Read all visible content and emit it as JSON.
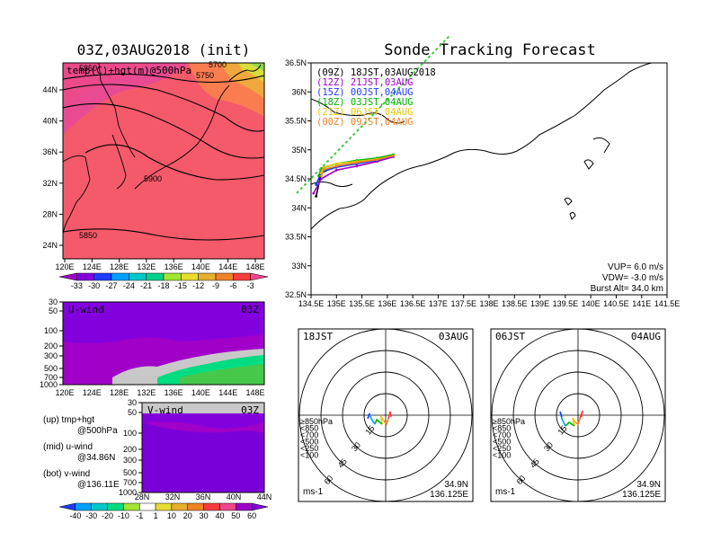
{
  "left_title": "03Z,03AUG2018 (init)",
  "right_title": "Sonde Tracking Forecast",
  "map_panel": {
    "label": "temp(C)+hgt(m)@500hPa",
    "contour_labels": [
      "5850",
      "5900",
      "5850",
      "5700",
      "5750"
    ],
    "lon_ticks": [
      "120E",
      "124E",
      "128E",
      "132E",
      "136E",
      "140E",
      "144E",
      "148E"
    ],
    "lat_ticks": [
      "44N",
      "40N",
      "36N",
      "32N",
      "28N",
      "24N"
    ]
  },
  "temp_colorbar": {
    "labels": [
      "-33",
      "-30",
      "-27",
      "-24",
      "-21",
      "-18",
      "-15",
      "-12",
      "-9",
      "-6",
      "-3"
    ],
    "colors": [
      "#a000c8",
      "#8200dc",
      "#1e3cff",
      "#00a0ff",
      "#00c8c8",
      "#00d28c",
      "#a0e632",
      "#e6dc32",
      "#e6af2d",
      "#f08228",
      "#fa3c3c",
      "#f0468c"
    ]
  },
  "uwind_panel": {
    "label": "U-wind",
    "time": "03Z",
    "y_ticks": [
      "30",
      "50",
      "100",
      "200",
      "300",
      "500",
      "700",
      "1000"
    ],
    "x_ticks": [
      "120E",
      "124E",
      "128E",
      "132E",
      "136E",
      "140E",
      "144E",
      "148E"
    ]
  },
  "vwind_panel": {
    "label": "V-wind",
    "time": "03Z",
    "y_ticks": [
      "30",
      "50",
      "100",
      "200",
      "300",
      "500",
      "700",
      "1000"
    ],
    "x_ticks": [
      "28N",
      "32N",
      "36N",
      "40N",
      "44N"
    ]
  },
  "notes": {
    "up": "(up)  tmp+hgt",
    "up2": "@500hPa",
    "mid": "(mid)  u-wind",
    "mid2": "@34.86N",
    "bot": "(bot)  v-wind",
    "bot2": "@136.11E"
  },
  "wind_colorbar": {
    "labels": [
      "-40",
      "-30",
      "-20",
      "-10",
      "-1",
      "1",
      "10",
      "20",
      "30",
      "40",
      "50",
      "60"
    ],
    "colors": [
      "#1e3cff",
      "#00a0ff",
      "#00c8c8",
      "#00dc82",
      "#a0e632",
      "#ffffff",
      "#e6dc32",
      "#e6af2d",
      "#f08228",
      "#fa3c3c",
      "#f0468c",
      "#a000c8",
      "#8200dc"
    ]
  },
  "track_map": {
    "lat_ticks": [
      "36.5N",
      "36N",
      "35.5N",
      "35N",
      "34.5N",
      "34N",
      "33.5N",
      "33N",
      "32.5N"
    ],
    "lon_ticks": [
      "134.5E",
      "135E",
      "135.5E",
      "136E",
      "136.5E",
      "137E",
      "137.5E",
      "138E",
      "138.5E",
      "139E",
      "139.5E",
      "140E",
      "140.5E",
      "141E",
      "141.5E"
    ],
    "launch_lines": [
      {
        "text": "(09Z) 18JST,03AUG2018",
        "color": "#000000"
      },
      {
        "text": "(12Z) 21JST,03AUG",
        "color": "#a000c8"
      },
      {
        "text": "(15Z) 00JST,04AUG",
        "color": "#1e3cff"
      },
      {
        "text": "(18Z) 03JST,04AUG",
        "color": "#00b400"
      },
      {
        "text": "(21Z) 06JST,04AUG",
        "color": "#e6c800"
      },
      {
        "text": "(00Z) 09JST,04AUG",
        "color": "#f08228"
      }
    ],
    "params": [
      "VUP=  6.0  m/s",
      "VDW=  -3.0  m/s",
      "Burst Alt=  34.0  km"
    ]
  },
  "hodo_left": {
    "time": "18JST",
    "date": "03AUG",
    "lat": "34.9N",
    "lon": "136.125E",
    "unit": "ms-1",
    "ring_labels": [
      "15",
      "30",
      "45",
      "60"
    ],
    "levels": [
      "≥850hPa",
      "<850",
      "<700",
      "<500",
      "<250",
      "<100"
    ],
    "level_colors": [
      "#fa3c3c",
      "#f08228",
      "#e6c800",
      "#00b400",
      "#00a0ff",
      "#1e3cff"
    ]
  },
  "hodo_right": {
    "time": "06JST",
    "date": "04AUG",
    "lat": "34.9N",
    "lon": "136.125E",
    "unit": "ms-1",
    "ring_labels": [
      "15",
      "30",
      "45",
      "60"
    ],
    "levels": [
      "≥850hPa",
      "<850",
      "<700",
      "<500",
      "<250",
      "<100"
    ],
    "level_colors": [
      "#fa3c3c",
      "#f08228",
      "#e6c800",
      "#00b400",
      "#00a0ff",
      "#1e3cff"
    ]
  },
  "chart_data": {
    "type": "line",
    "title": "Sonde Tracking Forecast",
    "xlabel": "",
    "ylabel": "",
    "xlim": [
      134.5,
      141.5
    ],
    "ylim": [
      32.5,
      36.5
    ],
    "series": [
      {
        "name": "(09Z) 18JST,03AUG2018",
        "color": "#000000",
        "x": [
          136.12,
          135.8,
          135.4,
          135.0,
          134.7,
          134.6
        ],
        "y": [
          34.9,
          34.82,
          34.78,
          34.72,
          34.6,
          34.2
        ]
      },
      {
        "name": "(12Z) 21JST,03AUG",
        "color": "#a000c8",
        "x": [
          136.12,
          135.8,
          135.4,
          135.0,
          134.7,
          134.55
        ],
        "y": [
          34.88,
          34.8,
          34.72,
          34.65,
          34.5,
          34.25
        ]
      },
      {
        "name": "(15Z) 00JST,04AUG",
        "color": "#1e3cff",
        "x": [
          136.12,
          135.8,
          135.4,
          135.0,
          134.7,
          134.6
        ],
        "y": [
          34.9,
          34.82,
          34.76,
          34.7,
          34.62,
          34.4
        ]
      },
      {
        "name": "(18Z) 03JST,04AUG",
        "color": "#00b400",
        "x": [
          136.12,
          135.8,
          135.4,
          135.0,
          134.7,
          134.65
        ],
        "y": [
          34.92,
          34.86,
          34.82,
          34.76,
          34.68,
          34.55
        ]
      },
      {
        "name": "(21Z) 06JST,04AUG",
        "color": "#e6c800",
        "x": [
          136.12,
          135.8,
          135.4,
          135.0,
          134.75,
          134.7
        ],
        "y": [
          34.9,
          34.84,
          34.8,
          34.76,
          34.7,
          34.6
        ]
      },
      {
        "name": "(00Z) 09JST,04AUG",
        "color": "#f08228",
        "x": [
          136.12,
          135.8,
          135.4,
          135.0,
          134.75,
          134.7
        ],
        "y": [
          34.9,
          34.83,
          34.78,
          34.72,
          34.66,
          34.55
        ]
      }
    ]
  }
}
